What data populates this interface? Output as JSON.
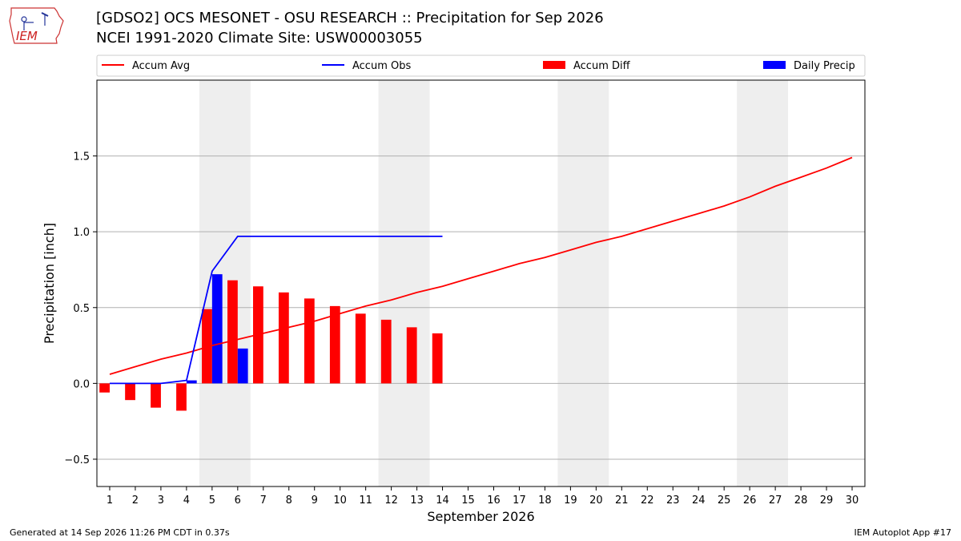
{
  "header": {
    "title_line1": "[GDSO2] OCS MESONET - OSU RESEARCH :: Precipitation for Sep 2026",
    "title_line2": "NCEI 1991-2020 Climate Site: USW00003055"
  },
  "logo": {
    "text": "IEM",
    "icon": "iowa-state-outline-icon"
  },
  "footer": {
    "left": "Generated at 14 Sep 2026 11:26 PM CDT in 0.37s",
    "right": "IEM Autoplot App #17"
  },
  "colors": {
    "avg": "#ff0000",
    "obs": "#0000ff",
    "diff": "#ff0000",
    "daily": "#0000ff",
    "weekend": "#eeeeee",
    "grid": "#b0b0b0"
  },
  "chart_data": {
    "type": "bar",
    "xlabel": "September 2026",
    "ylabel": "Precipitation [inch]",
    "xlim": [
      0.5,
      30.5
    ],
    "ylim": [
      -0.68,
      2.0
    ],
    "yticks": [
      -0.5,
      0.0,
      0.5,
      1.0,
      1.5
    ],
    "ytick_labels": [
      "−0.5",
      "0.0",
      "0.5",
      "1.0",
      "1.5"
    ],
    "x": [
      1,
      2,
      3,
      4,
      5,
      6,
      7,
      8,
      9,
      10,
      11,
      12,
      13,
      14,
      15,
      16,
      17,
      18,
      19,
      20,
      21,
      22,
      23,
      24,
      25,
      26,
      27,
      28,
      29,
      30
    ],
    "grid": "horizontal",
    "legend_position": "top",
    "weekend_spans": [
      [
        4.5,
        6.5
      ],
      [
        11.5,
        13.5
      ],
      [
        18.5,
        20.5
      ],
      [
        25.5,
        27.5
      ]
    ],
    "series": [
      {
        "name": "Accum Avg",
        "type": "line",
        "x": [
          1,
          2,
          3,
          4,
          5,
          6,
          7,
          8,
          9,
          10,
          11,
          12,
          13,
          14,
          15,
          16,
          17,
          18,
          19,
          20,
          21,
          22,
          23,
          24,
          25,
          26,
          27,
          28,
          29,
          30
        ],
        "values": [
          0.06,
          0.11,
          0.16,
          0.2,
          0.25,
          0.29,
          0.33,
          0.37,
          0.41,
          0.46,
          0.51,
          0.55,
          0.6,
          0.64,
          0.69,
          0.74,
          0.79,
          0.83,
          0.88,
          0.93,
          0.97,
          1.02,
          1.07,
          1.12,
          1.17,
          1.23,
          1.3,
          1.36,
          1.42,
          1.49
        ]
      },
      {
        "name": "Accum Obs",
        "type": "line",
        "x": [
          1,
          2,
          3,
          4,
          5,
          6,
          7,
          8,
          9,
          10,
          11,
          12,
          13,
          14
        ],
        "values": [
          0.0,
          0.0,
          0.0,
          0.02,
          0.74,
          0.97,
          0.97,
          0.97,
          0.97,
          0.97,
          0.97,
          0.97,
          0.97,
          0.97
        ]
      },
      {
        "name": "Accum Diff",
        "type": "bar",
        "x": [
          1,
          2,
          3,
          4,
          5,
          6,
          7,
          8,
          9,
          10,
          11,
          12,
          13,
          14
        ],
        "values": [
          -0.06,
          -0.11,
          -0.16,
          -0.18,
          0.49,
          0.68,
          0.64,
          0.6,
          0.56,
          0.51,
          0.46,
          0.42,
          0.37,
          0.33
        ]
      },
      {
        "name": "Daily Precip",
        "type": "bar",
        "x": [
          1,
          2,
          3,
          4,
          5,
          6,
          7,
          8,
          9,
          10,
          11,
          12,
          13,
          14
        ],
        "values": [
          0.0,
          0.0,
          0.0,
          0.02,
          0.72,
          0.23,
          0.0,
          0.0,
          0.0,
          0.0,
          0.0,
          0.0,
          0.0,
          0.0
        ]
      }
    ]
  }
}
